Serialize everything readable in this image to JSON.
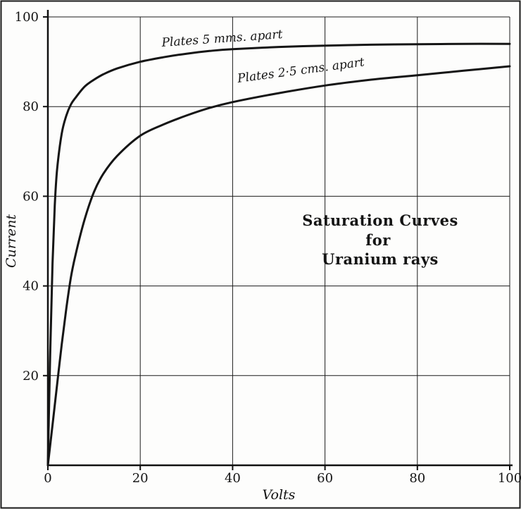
{
  "chart_data": {
    "type": "line",
    "title": "Saturation Curves for Uranium rays",
    "annotation_lines": [
      "Saturation Curves",
      "for",
      "Uranium rays"
    ],
    "xlabel": "Volts",
    "ylabel": "Current",
    "xlim": [
      0,
      100
    ],
    "ylim": [
      0,
      100
    ],
    "x_ticks": [
      0,
      20,
      40,
      60,
      80,
      100
    ],
    "y_ticks": [
      20,
      40,
      60,
      80,
      100
    ],
    "grid": true,
    "legend_position": "inline-curve-labels",
    "line_color": "#151515",
    "series": [
      {
        "name": "Plates 5 mms. apart",
        "x": [
          0,
          0.5,
          1,
          1.5,
          2,
          3,
          4,
          5,
          6,
          8,
          10,
          12,
          15,
          20,
          25,
          30,
          35,
          40,
          50,
          60,
          70,
          80,
          90,
          100
        ],
        "y": [
          0,
          25,
          45,
          58,
          66,
          74,
          78,
          80.5,
          82,
          84.5,
          86,
          87.2,
          88.5,
          90,
          91,
          91.8,
          92.4,
          92.8,
          93.3,
          93.6,
          93.8,
          93.9,
          94,
          94
        ]
      },
      {
        "name": "Plates 2·5 cms. apart",
        "x": [
          0,
          1,
          2,
          3,
          4,
          5,
          6,
          8,
          10,
          12,
          15,
          20,
          25,
          30,
          35,
          40,
          50,
          60,
          70,
          80,
          90,
          100
        ],
        "y": [
          0,
          9,
          18,
          27,
          35,
          42,
          47,
          55,
          61,
          65,
          69,
          73.5,
          76,
          78,
          79.7,
          81,
          83,
          84.7,
          86,
          87,
          88,
          89
        ]
      }
    ]
  }
}
